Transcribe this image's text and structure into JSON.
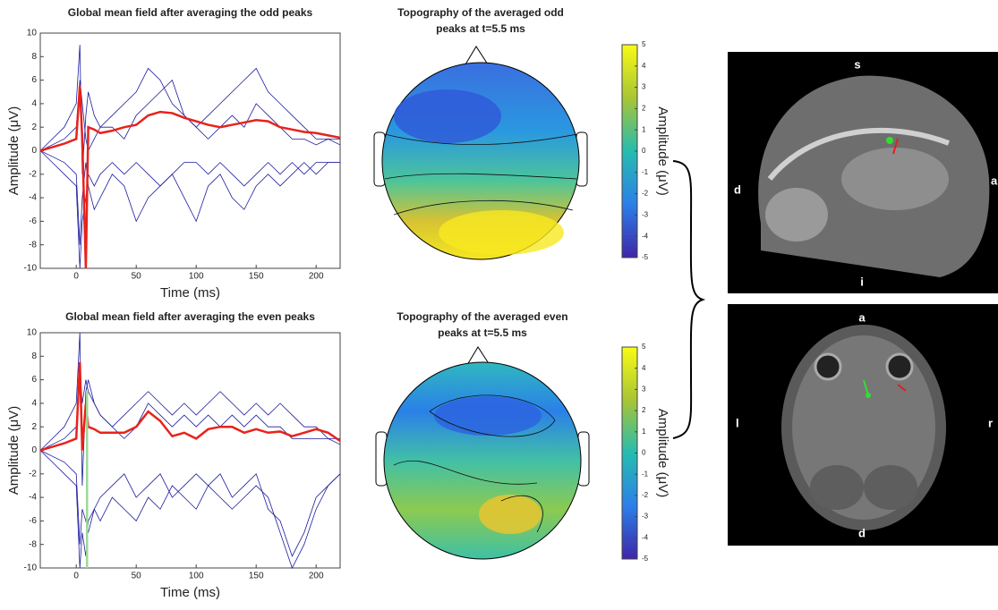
{
  "chart_data": [
    {
      "type": "line",
      "title": "Global mean field after averaging the odd peaks",
      "x_label": "Time (ms)",
      "y_label": "Amplitude (μV)",
      "x": [
        -30,
        -20,
        -10,
        0,
        3,
        5,
        8,
        10,
        15,
        20,
        30,
        40,
        50,
        60,
        70,
        80,
        90,
        100,
        110,
        120,
        130,
        140,
        150,
        160,
        170,
        180,
        190,
        200,
        210,
        220
      ],
      "xlim": [
        -30,
        220
      ],
      "xticks": [
        0,
        50,
        100,
        150,
        200
      ],
      "ylim": [
        -10,
        10
      ],
      "yticks": [
        -10,
        -8,
        -6,
        -4,
        -2,
        0,
        2,
        4,
        6,
        8,
        10
      ],
      "series": [
        {
          "color": "#1a1a9e",
          "values": [
            0,
            1,
            2,
            4,
            9,
            -2,
            3,
            5,
            3,
            2,
            2,
            1,
            3,
            4,
            5,
            6,
            3,
            2,
            1,
            2,
            3,
            2,
            4,
            3,
            2,
            1,
            1,
            0.5,
            1,
            0.5
          ]
        },
        {
          "color": "#1a1a9e",
          "values": [
            0,
            -1,
            -2,
            -3,
            -10,
            -6,
            -4,
            -2,
            -3,
            -2,
            -1,
            -2,
            -1,
            -2,
            -3,
            -2,
            -1,
            -1,
            -2,
            -1,
            -2,
            -3,
            -2,
            -1,
            -2,
            -1,
            -2,
            -1,
            -1,
            -1
          ]
        },
        {
          "color": "#1a1a9e",
          "values": [
            0,
            0.5,
            1,
            2,
            6,
            4,
            1,
            0,
            1,
            2,
            3,
            4,
            5,
            7,
            6,
            4,
            3,
            2,
            3,
            4,
            5,
            6,
            7,
            5,
            4,
            3,
            2,
            1,
            1,
            1
          ]
        },
        {
          "color": "#1a1a9e",
          "values": [
            0,
            -0.5,
            -1,
            -2,
            -8,
            -4,
            -1,
            -3,
            -5,
            -4,
            -2,
            -3,
            -6,
            -4,
            -3,
            -2,
            -4,
            -6,
            -3,
            -2,
            -4,
            -5,
            -3,
            -2,
            -3,
            -2,
            -1,
            -2,
            -1,
            -1
          ]
        },
        {
          "color": "#e8221b",
          "values": [
            0,
            0.3,
            0.6,
            1,
            5.5,
            1,
            -10,
            2,
            1.8,
            1.5,
            1.7,
            2,
            2.2,
            3,
            3.3,
            3.2,
            2.8,
            2.5,
            2.2,
            2,
            2.2,
            2.4,
            2.6,
            2.5,
            2,
            1.8,
            1.6,
            1.5,
            1.3,
            1.1
          ]
        }
      ]
    },
    {
      "type": "line",
      "title": "Global mean field after averaging the even peaks",
      "x_label": "Time (ms)",
      "y_label": "Amplitude (μV)",
      "x": [
        -30,
        -20,
        -10,
        0,
        3,
        5,
        8,
        10,
        15,
        20,
        30,
        40,
        50,
        60,
        70,
        80,
        90,
        100,
        110,
        120,
        130,
        140,
        150,
        160,
        170,
        180,
        190,
        200,
        210,
        220
      ],
      "xlim": [
        -30,
        220
      ],
      "xticks": [
        0,
        50,
        100,
        150,
        200
      ],
      "ylim": [
        -10,
        10
      ],
      "yticks": [
        -10,
        -8,
        -6,
        -4,
        -2,
        0,
        2,
        4,
        6,
        8,
        10
      ],
      "series": [
        {
          "color": "#1a1a9e",
          "values": [
            0,
            1,
            2,
            4,
            10,
            -3,
            5,
            6,
            4,
            3,
            2,
            1,
            2,
            4,
            3,
            2,
            3,
            2,
            3,
            2,
            3,
            2,
            3,
            2,
            2,
            1,
            1,
            1,
            1,
            0.5
          ]
        },
        {
          "color": "#1a1a9e",
          "values": [
            0,
            -1,
            -2,
            -3,
            -10,
            -7,
            -9,
            -6,
            -5,
            -4,
            -3,
            -2,
            -4,
            -3,
            -2,
            -4,
            -3,
            -2,
            -3,
            -2,
            -4,
            -3,
            -2,
            -5,
            -6,
            -9,
            -7,
            -4,
            -3,
            -2
          ]
        },
        {
          "color": "#1a1a9e",
          "values": [
            0,
            0.5,
            1,
            2,
            7,
            4,
            6,
            5,
            4,
            3,
            2,
            3,
            4,
            5,
            4,
            3,
            4,
            3,
            4,
            5,
            4,
            3,
            4,
            3,
            4,
            3,
            2,
            2,
            1,
            1
          ]
        },
        {
          "color": "#1a1a9e",
          "values": [
            0,
            -0.5,
            -1,
            -2,
            -8,
            -5,
            -6,
            -7,
            -5,
            -6,
            -4,
            -5,
            -6,
            -4,
            -5,
            -3,
            -4,
            -5,
            -3,
            -4,
            -5,
            -4,
            -3,
            -4,
            -7,
            -10,
            -8,
            -5,
            -3,
            -2
          ]
        },
        {
          "color": "#e8221b",
          "values": [
            0,
            0.3,
            0.6,
            1,
            7.5,
            0,
            4,
            2,
            1.8,
            1.5,
            1.5,
            1.5,
            2,
            3.3,
            2.5,
            1.2,
            1.5,
            1,
            1.8,
            2,
            2,
            1.5,
            1.8,
            1.5,
            1.6,
            1.2,
            1.5,
            1.8,
            1.5,
            0.8
          ]
        },
        {
          "color": "#9fd89a",
          "x": [
            9,
            9
          ],
          "values": [
            -10,
            5
          ]
        }
      ]
    },
    {
      "type": "colorbar",
      "title": [
        "Topography of the averaged odd",
        "peaks at t=5.5 ms"
      ],
      "label": "Amplitude (μV)",
      "clim": [
        -5,
        5
      ],
      "cticks": [
        -5,
        -4,
        -3,
        -2,
        -1,
        0,
        1,
        2,
        3,
        4,
        5
      ]
    },
    {
      "type": "colorbar",
      "title": [
        "Topography of the averaged even",
        "peaks at t=5.5 ms"
      ],
      "label": "Amplitude (μV)",
      "clim": [
        -5,
        5
      ],
      "cticks": [
        -5,
        -4,
        -3,
        -2,
        -1,
        0,
        1,
        2,
        3,
        4,
        5
      ]
    }
  ],
  "images": [
    {
      "labels": {
        "top": "s",
        "left": "d",
        "right": "a",
        "bottom": "i"
      }
    },
    {
      "labels": {
        "top": "a",
        "left": "l",
        "right": "r",
        "bottom": "d"
      }
    }
  ]
}
